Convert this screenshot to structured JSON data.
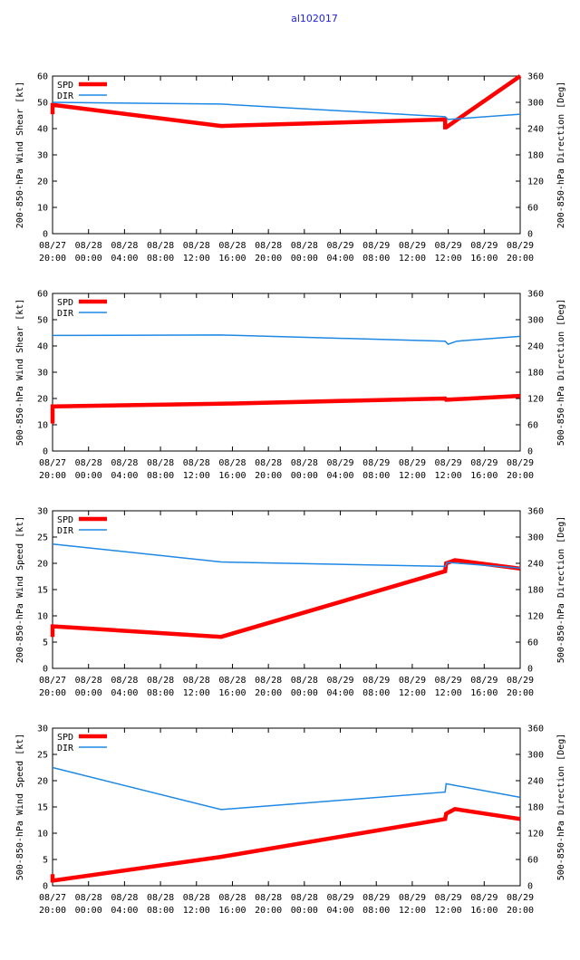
{
  "page_title": "al102017",
  "colors": {
    "title": "#2222dd",
    "spd": "#ff0000",
    "dir": "#1e88e5",
    "axis": "#000000"
  },
  "chart_data": [
    {
      "type": "line",
      "ylabel_left": "200-850-hPa Wind Shear [kt]",
      "ylabel_right": "200-850-hPa Direction [Deg]",
      "ylim_left": [
        0,
        60
      ],
      "yticks_left": [
        "0",
        "10",
        "20",
        "30",
        "40",
        "50",
        "60"
      ],
      "ylim_right": [
        0,
        360
      ],
      "yticks_right": [
        "0",
        "60",
        "120",
        "180",
        "240",
        "300",
        "360"
      ],
      "xlim": [
        0,
        48
      ],
      "xticks_top": [
        "08/27",
        "08/28",
        "08/28",
        "08/28",
        "08/28",
        "08/28",
        "08/28",
        "08/28",
        "08/29",
        "08/29",
        "08/29",
        "08/29",
        "08/29",
        "08/29"
      ],
      "xticks_bottom": [
        "20:00",
        "00:00",
        "04:00",
        "08:00",
        "12:00",
        "16:00",
        "20:00",
        "00:00",
        "04:00",
        "08:00",
        "12:00",
        "12:00",
        "16:00",
        "20:00"
      ],
      "legend": [
        "SPD",
        "DIR"
      ],
      "series": [
        {
          "name": "SPD",
          "axis": "left",
          "x": [
            0,
            0,
            0.1,
            17.3,
            40.3,
            40.3,
            40.4,
            48
          ],
          "y": [
            45.5,
            49,
            49,
            41,
            43.5,
            40.5,
            40.5,
            60
          ]
        },
        {
          "name": "DIR",
          "axis": "right",
          "x": [
            0,
            17.3,
            40.3,
            40.6,
            48
          ],
          "y": [
            300,
            296,
            267,
            261,
            273
          ]
        }
      ]
    },
    {
      "type": "line",
      "ylabel_left": "500-850-hPa Wind Shear [kt]",
      "ylabel_right": "500-850-hPa Direction [Deg]",
      "ylim_left": [
        0,
        60
      ],
      "yticks_left": [
        "0",
        "10",
        "20",
        "30",
        "40",
        "50",
        "60"
      ],
      "ylim_right": [
        0,
        360
      ],
      "yticks_right": [
        "0",
        "60",
        "120",
        "180",
        "240",
        "300",
        "360"
      ],
      "xlim": [
        0,
        48
      ],
      "xticks_top": [
        "08/27",
        "08/28",
        "08/28",
        "08/28",
        "08/28",
        "08/28",
        "08/28",
        "08/28",
        "08/29",
        "08/29",
        "08/29",
        "08/29",
        "08/29",
        "08/29"
      ],
      "xticks_bottom": [
        "20:00",
        "00:00",
        "04:00",
        "08:00",
        "12:00",
        "16:00",
        "20:00",
        "00:00",
        "04:00",
        "08:00",
        "12:00",
        "12:00",
        "16:00",
        "20:00"
      ],
      "legend": [
        "SPD",
        "DIR"
      ],
      "series": [
        {
          "name": "SPD",
          "axis": "left",
          "x": [
            0,
            0,
            0.1,
            17.3,
            40.3,
            40.4,
            48
          ],
          "y": [
            10.5,
            17,
            17,
            18,
            20,
            19.5,
            21
          ]
        },
        {
          "name": "DIR",
          "axis": "right",
          "x": [
            0,
            17.3,
            40.3,
            40.6,
            41.5,
            48
          ],
          "y": [
            264,
            265,
            251,
            244,
            251,
            262
          ]
        }
      ]
    },
    {
      "type": "line",
      "ylabel_left": "200-850-hPa Wind Speed [kt]",
      "ylabel_right": "500-850-hPa Direction [Deg]",
      "ylim_left": [
        0,
        30
      ],
      "yticks_left": [
        "0",
        "5",
        "10",
        "15",
        "20",
        "25",
        "30"
      ],
      "ylim_right": [
        0,
        360
      ],
      "yticks_right": [
        "0",
        "60",
        "120",
        "180",
        "240",
        "300",
        "360"
      ],
      "xlim": [
        0,
        48
      ],
      "xticks_top": [
        "08/27",
        "08/28",
        "08/28",
        "08/28",
        "08/28",
        "08/28",
        "08/28",
        "08/28",
        "08/29",
        "08/29",
        "08/29",
        "08/29",
        "08/29",
        "08/29"
      ],
      "xticks_bottom": [
        "20:00",
        "00:00",
        "04:00",
        "08:00",
        "12:00",
        "16:00",
        "20:00",
        "00:00",
        "04:00",
        "08:00",
        "12:00",
        "12:00",
        "16:00",
        "20:00"
      ],
      "legend": [
        "SPD",
        "DIR"
      ],
      "series": [
        {
          "name": "SPD",
          "axis": "left",
          "x": [
            0,
            0,
            0.1,
            17.3,
            40.3,
            40.4,
            41.3,
            48
          ],
          "y": [
            6,
            8,
            8,
            6,
            18.5,
            20,
            20.6,
            19
          ]
        },
        {
          "name": "DIR",
          "axis": "right",
          "x": [
            0,
            17.3,
            40.3,
            40.5,
            48
          ],
          "y": [
            284,
            243,
            233,
            242,
            229
          ]
        }
      ]
    },
    {
      "type": "line",
      "ylabel_left": "500-850-hPa Wind Speed [kt]",
      "ylabel_right": "500-850-hPa Direction [Deg]",
      "ylim_left": [
        0,
        30
      ],
      "yticks_left": [
        "0",
        "5",
        "10",
        "15",
        "20",
        "25",
        "30"
      ],
      "ylim_right": [
        0,
        360
      ],
      "yticks_right": [
        "0",
        "60",
        "120",
        "180",
        "240",
        "300",
        "360"
      ],
      "xlim": [
        0,
        48
      ],
      "xticks_top": [
        "08/27",
        "08/28",
        "08/28",
        "08/28",
        "08/28",
        "08/28",
        "08/28",
        "08/28",
        "08/29",
        "08/29",
        "08/29",
        "08/29",
        "08/29",
        "08/29"
      ],
      "xticks_bottom": [
        "20:00",
        "00:00",
        "04:00",
        "08:00",
        "12:00",
        "16:00",
        "20:00",
        "00:00",
        "04:00",
        "08:00",
        "12:00",
        "12:00",
        "16:00",
        "20:00"
      ],
      "legend": [
        "SPD",
        "DIR"
      ],
      "series": [
        {
          "name": "SPD",
          "axis": "left",
          "x": [
            0,
            0,
            0.1,
            17.3,
            40.3,
            40.4,
            41.3,
            48
          ],
          "y": [
            2.2,
            1,
            1,
            5.5,
            12.7,
            13.7,
            14.6,
            12.7
          ]
        },
        {
          "name": "DIR",
          "axis": "right",
          "x": [
            0,
            17.3,
            40.3,
            40.4,
            48
          ],
          "y": [
            270,
            174,
            214,
            233,
            202
          ]
        }
      ]
    }
  ]
}
